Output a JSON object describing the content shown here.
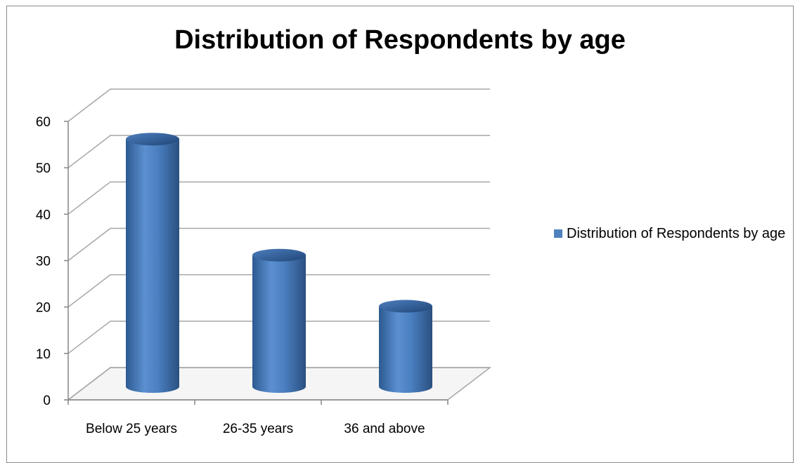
{
  "chart_data": {
    "type": "bar",
    "style": "3d-cylinder",
    "title": "Distribution of Respondents by age",
    "xlabel": "",
    "ylabel": "",
    "categories": [
      "Below 25 years",
      "26-35 years",
      "36 and above"
    ],
    "series": [
      {
        "name": "Distribution of Respondents by age",
        "values": [
          53,
          28,
          17
        ],
        "color": "#4f81bd"
      }
    ],
    "ylim": [
      0,
      60
    ],
    "yticks": [
      "0",
      "10",
      "20",
      "30",
      "40",
      "50",
      "60"
    ],
    "grid": true,
    "legend_position": "right"
  }
}
